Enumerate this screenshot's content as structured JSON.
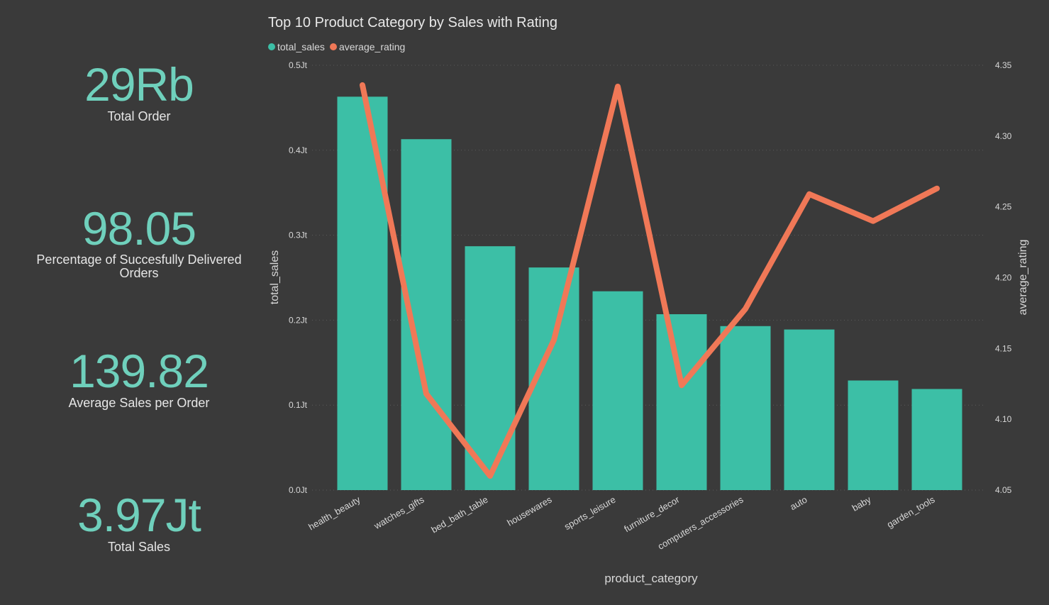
{
  "kpis": [
    {
      "value": "29Rb",
      "label": "Total Order"
    },
    {
      "value": "98.05",
      "label": "Percentage of Succesfully Delivered Orders",
      "label_line1": "Percentage of Succesfully Delivered",
      "label_line2": "Orders"
    },
    {
      "value": "139.82",
      "label": "Average Sales per Order"
    },
    {
      "value": "3.97Jt",
      "label": "Total Sales"
    }
  ],
  "colors": {
    "background": "#3a3a3a",
    "kpi_value": "#6fd0bc",
    "bar": "#3cbfa6",
    "line": "#f07857",
    "text": "#e6e6e6",
    "axis_text": "#d8d8d8",
    "grid": "#5a5a5a"
  },
  "chart_data": {
    "type": "bar+line",
    "title": "Top 10 Product Category by Sales with Rating",
    "xlabel": "product_category",
    "ylabel": "total_sales",
    "y2label": "average_rating",
    "categories": [
      "health_beauty",
      "watches_gifts",
      "bed_bath_table",
      "housewares",
      "sports_leisure",
      "furniture_decor",
      "computers_accessories",
      "auto",
      "baby",
      "garden_tools"
    ],
    "series": [
      {
        "name": "total_sales",
        "type": "bar",
        "axis": "left",
        "values": [
          463000,
          413000,
          287000,
          262000,
          234000,
          207000,
          193000,
          189000,
          129000,
          119000
        ]
      },
      {
        "name": "average_rating",
        "type": "line",
        "axis": "right",
        "values": [
          4.336,
          4.118,
          4.06,
          4.156,
          4.335,
          4.124,
          4.178,
          4.259,
          4.24,
          4.263
        ]
      }
    ],
    "ylim": [
      0,
      500000
    ],
    "y_ticks": [
      0,
      100000,
      200000,
      300000,
      400000,
      500000
    ],
    "y_tick_labels": [
      "0.0Jt",
      "0.1Jt",
      "0.2Jt",
      "0.3Jt",
      "0.4Jt",
      "0.5Jt"
    ],
    "y2lim": [
      4.05,
      4.35
    ],
    "y2_ticks": [
      4.05,
      4.1,
      4.15,
      4.2,
      4.25,
      4.3,
      4.35
    ],
    "y2_tick_labels": [
      "4.05",
      "4.10",
      "4.15",
      "4.20",
      "4.25",
      "4.30",
      "4.35"
    ],
    "grid": true,
    "legend_position": "top-left"
  }
}
